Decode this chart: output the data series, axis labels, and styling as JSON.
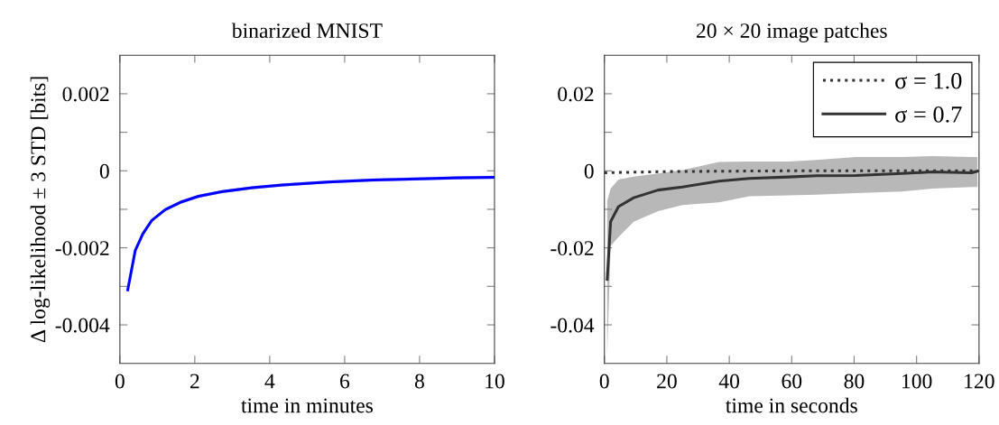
{
  "chart_data": [
    {
      "type": "line",
      "title": "binarized MNIST",
      "xlabel": "time in minutes",
      "ylabel": "Δ log-likelihood ± 3 STD [bits]",
      "xlim": [
        0,
        10
      ],
      "ylim": [
        -0.005,
        0.003
      ],
      "xticks": [
        0,
        2,
        4,
        6,
        8,
        10
      ],
      "yticks": [
        {
          "value": 0.002,
          "label": "0.002"
        },
        {
          "value": 0.001,
          "label": null
        },
        0,
        {
          "value": -0.001,
          "label": null
        },
        {
          "value": -0.002,
          "label": "-0.002"
        },
        {
          "value": -0.003,
          "label": null
        },
        {
          "value": -0.004,
          "label": "-0.004"
        }
      ],
      "grid": false,
      "legend": false,
      "line_style": "solid",
      "marker": "none",
      "series": [
        {
          "color": "#0000ff",
          "x": [
            0.21,
            0.41,
            0.61,
            0.85,
            1.21,
            1.61,
            2.1,
            2.74,
            3.54,
            4.34,
            5.55,
            6.75,
            7.96,
            9.16,
            9.97
          ],
          "values": [
            -0.00309,
            -0.00207,
            -0.00164,
            -0.00129,
            -0.00101,
            -0.00082,
            -0.00066,
            -0.00054,
            -0.00044,
            -0.00037,
            -0.00029,
            -0.00024,
            -0.00021,
            -0.00018,
            -0.00017
          ],
          "lower": [
            -0.00315,
            -0.00211,
            -0.00168,
            -0.00133,
            -0.00105,
            -0.00086,
            -0.0007,
            -0.00058,
            -0.00048,
            -0.00041,
            -0.00033,
            -0.00028,
            -0.00025,
            -0.00022,
            -0.00021
          ],
          "upper": [
            -0.00303,
            -0.00203,
            -0.0016,
            -0.00125,
            -0.00097,
            -0.00078,
            -0.00062,
            -0.0005,
            -0.0004,
            -0.00033,
            -0.00025,
            -0.0002,
            -0.00017,
            -0.00014,
            -0.00013
          ]
        }
      ]
    },
    {
      "type": "line",
      "title": "20 × 20 image patches",
      "xlabel": "time in seconds",
      "xlim": [
        0,
        120
      ],
      "ylim": [
        -0.05,
        0.03
      ],
      "xticks": [
        0,
        20,
        40,
        60,
        80,
        100,
        120
      ],
      "yticks": [
        {
          "value": 0.02,
          "label": "0.02"
        },
        {
          "value": 0.01,
          "label": null
        },
        0,
        {
          "value": -0.01,
          "label": null
        },
        {
          "value": -0.02,
          "label": "-0.02"
        },
        {
          "value": -0.03,
          "label": null
        },
        {
          "value": -0.04,
          "label": "-0.04"
        }
      ],
      "grid": false,
      "legend": "top right",
      "marker": "none",
      "series": [
        {
          "name": "σ = 1.0",
          "color": "#333333",
          "line_style": "dotted",
          "x": [
            0,
            20,
            60,
            119
          ],
          "values": [
            -0.0005,
            -0.0002,
            0,
            0
          ]
        },
        {
          "name": "σ = 0.7",
          "color": "#333333",
          "line_style": "solid",
          "x": [
            0.9,
            2.0,
            4.5,
            9.4,
            17.2,
            25,
            36.7,
            46.4,
            59.1,
            67.9,
            80.6,
            95.2,
            105,
            117.7,
            119.5
          ],
          "values": [
            -0.0282,
            -0.0132,
            -0.0093,
            -0.007,
            -0.005,
            -0.0042,
            -0.0027,
            -0.002,
            -0.0016,
            -0.0013,
            -0.0012,
            -0.0007,
            -0.0003,
            -0.0005,
            -0.0001
          ],
          "lower": [
            -0.0478,
            -0.0195,
            -0.0172,
            -0.0132,
            -0.0105,
            -0.0089,
            -0.0082,
            -0.0066,
            -0.0064,
            -0.0062,
            -0.0058,
            -0.0054,
            -0.0046,
            -0.0042,
            -0.0042
          ],
          "upper": [
            -0.0078,
            -0.0046,
            -0.0023,
            -0.0015,
            -0.0007,
            0.0002,
            0.0023,
            0.0024,
            0.0024,
            0.0028,
            0.0036,
            0.0036,
            0.0038,
            0.0036,
            0.0036
          ]
        }
      ]
    }
  ]
}
